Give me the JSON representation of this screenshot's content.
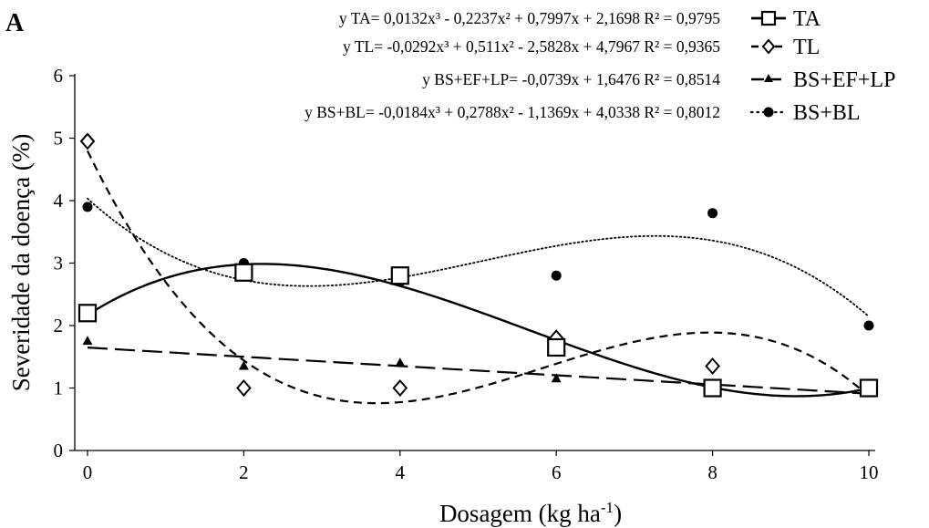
{
  "panel_label": "A",
  "chart_data": {
    "type": "scatter",
    "xlabel": "Dosagem (kg ha",
    "xlabel_sup": "-1",
    "xlabel_close": ")",
    "ylabel": "Severidade da doença (%)",
    "xlim": [
      0,
      10
    ],
    "ylim": [
      0,
      6
    ],
    "x": [
      0,
      2,
      4,
      6,
      8,
      10
    ],
    "x_ticks": [
      "0",
      "2",
      "4",
      "6",
      "8",
      "10"
    ],
    "y_ticks": [
      "0",
      "1",
      "2",
      "3",
      "4",
      "5",
      "6"
    ],
    "grid": false,
    "legend_position": "top-right",
    "series": [
      {
        "name": "TA",
        "marker": "square",
        "line_style": "solid",
        "color": "#000000",
        "values": [
          2.2,
          2.85,
          2.8,
          1.65,
          1.0,
          1.0
        ],
        "equation": "y TA= 0,0132x³ - 0,2237x² + 0,7997x + 2,1698 R² = 0,9795",
        "coef": [
          2.1698,
          0.7997,
          -0.2237,
          0.0132
        ]
      },
      {
        "name": "TL",
        "marker": "diamond",
        "line_style": "dashed",
        "color": "#000000",
        "values": [
          4.95,
          1.0,
          1.0,
          1.8,
          1.35,
          1.0
        ],
        "equation": "y TL= -0,0292x³ + 0,511x² - 2,5828x + 4,7967 R² = 0,9365",
        "coef": [
          4.7967,
          -2.5828,
          0.511,
          -0.0292
        ]
      },
      {
        "name": "BS+EF+LP",
        "marker": "triangle",
        "line_style": "longdash",
        "color": "#000000",
        "values": [
          1.75,
          1.35,
          1.4,
          1.15,
          1.0,
          0.95
        ],
        "equation": "y BS+EF+LP= -0,0739x + 1,6476 R² = 0,8514",
        "coef": [
          1.6476,
          -0.0739,
          0,
          0
        ]
      },
      {
        "name": "BS+BL",
        "marker": "circle",
        "line_style": "dotted",
        "color": "#000000",
        "values": [
          3.9,
          3.0,
          2.7,
          2.8,
          3.8,
          2.0
        ],
        "equation": "y BS+BL= -0,0184x³ + 0,2788x² - 1,1369x + 4,0338 R² = 0,8012",
        "coef": [
          4.0338,
          -1.1369,
          0.2788,
          -0.0184
        ]
      }
    ]
  }
}
